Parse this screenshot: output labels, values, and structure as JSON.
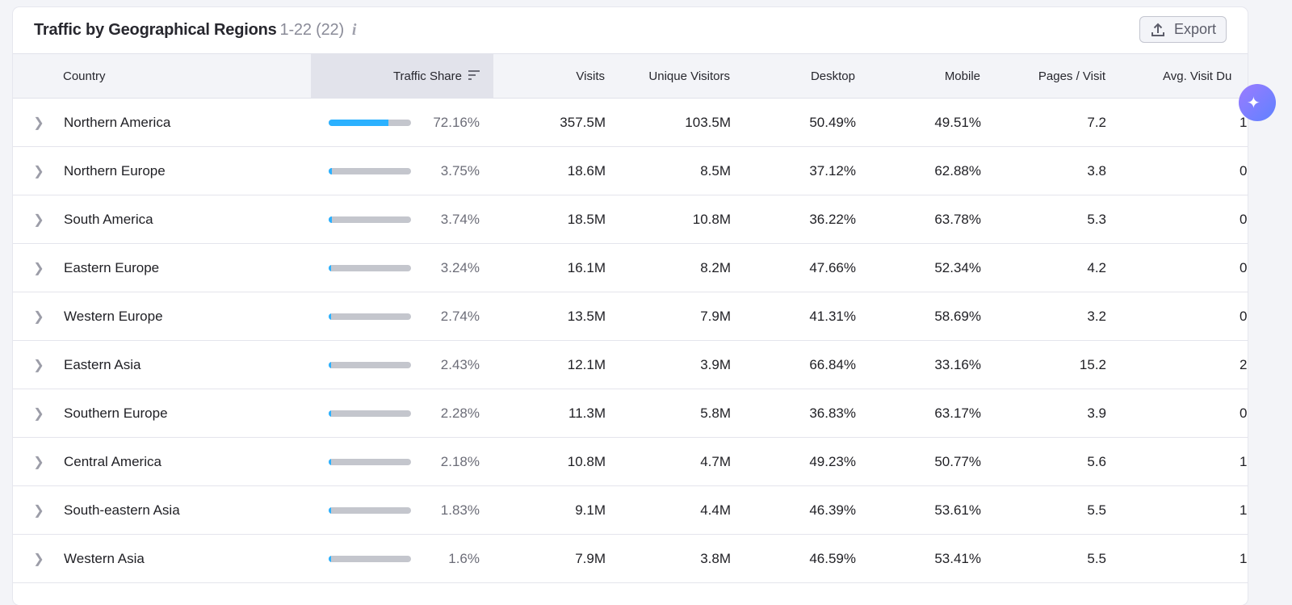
{
  "header": {
    "title": "Traffic by Geographical Regions",
    "count": "1-22 (22)",
    "info_icon": "i",
    "export_label": "Export"
  },
  "columns": [
    "Country",
    "Traffic Share",
    "Visits",
    "Unique Visitors",
    "Desktop",
    "Mobile",
    "Pages / Visit",
    "Avg. Visit Du"
  ],
  "accent": "#2bb1ff",
  "rows": [
    {
      "country": "Northern America",
      "share": 72.16,
      "share_label": "72.16%",
      "visits": "357.5M",
      "unique": "103.5M",
      "desktop": "50.49%",
      "mobile": "49.51%",
      "pages": "7.2",
      "avg": "1"
    },
    {
      "country": "Northern Europe",
      "share": 3.75,
      "share_label": "3.75%",
      "visits": "18.6M",
      "unique": "8.5M",
      "desktop": "37.12%",
      "mobile": "62.88%",
      "pages": "3.8",
      "avg": "0"
    },
    {
      "country": "South America",
      "share": 3.74,
      "share_label": "3.74%",
      "visits": "18.5M",
      "unique": "10.8M",
      "desktop": "36.22%",
      "mobile": "63.78%",
      "pages": "5.3",
      "avg": "0"
    },
    {
      "country": "Eastern Europe",
      "share": 3.24,
      "share_label": "3.24%",
      "visits": "16.1M",
      "unique": "8.2M",
      "desktop": "47.66%",
      "mobile": "52.34%",
      "pages": "4.2",
      "avg": "0"
    },
    {
      "country": "Western Europe",
      "share": 2.74,
      "share_label": "2.74%",
      "visits": "13.5M",
      "unique": "7.9M",
      "desktop": "41.31%",
      "mobile": "58.69%",
      "pages": "3.2",
      "avg": "0"
    },
    {
      "country": "Eastern Asia",
      "share": 2.43,
      "share_label": "2.43%",
      "visits": "12.1M",
      "unique": "3.9M",
      "desktop": "66.84%",
      "mobile": "33.16%",
      "pages": "15.2",
      "avg": "2"
    },
    {
      "country": "Southern Europe",
      "share": 2.28,
      "share_label": "2.28%",
      "visits": "11.3M",
      "unique": "5.8M",
      "desktop": "36.83%",
      "mobile": "63.17%",
      "pages": "3.9",
      "avg": "0"
    },
    {
      "country": "Central America",
      "share": 2.18,
      "share_label": "2.18%",
      "visits": "10.8M",
      "unique": "4.7M",
      "desktop": "49.23%",
      "mobile": "50.77%",
      "pages": "5.6",
      "avg": "1"
    },
    {
      "country": "South-eastern Asia",
      "share": 1.83,
      "share_label": "1.83%",
      "visits": "9.1M",
      "unique": "4.4M",
      "desktop": "46.39%",
      "mobile": "53.61%",
      "pages": "5.5",
      "avg": "1"
    },
    {
      "country": "Western Asia",
      "share": 1.6,
      "share_label": "1.6%",
      "visits": "7.9M",
      "unique": "3.8M",
      "desktop": "46.59%",
      "mobile": "53.41%",
      "pages": "5.5",
      "avg": "1"
    }
  ]
}
